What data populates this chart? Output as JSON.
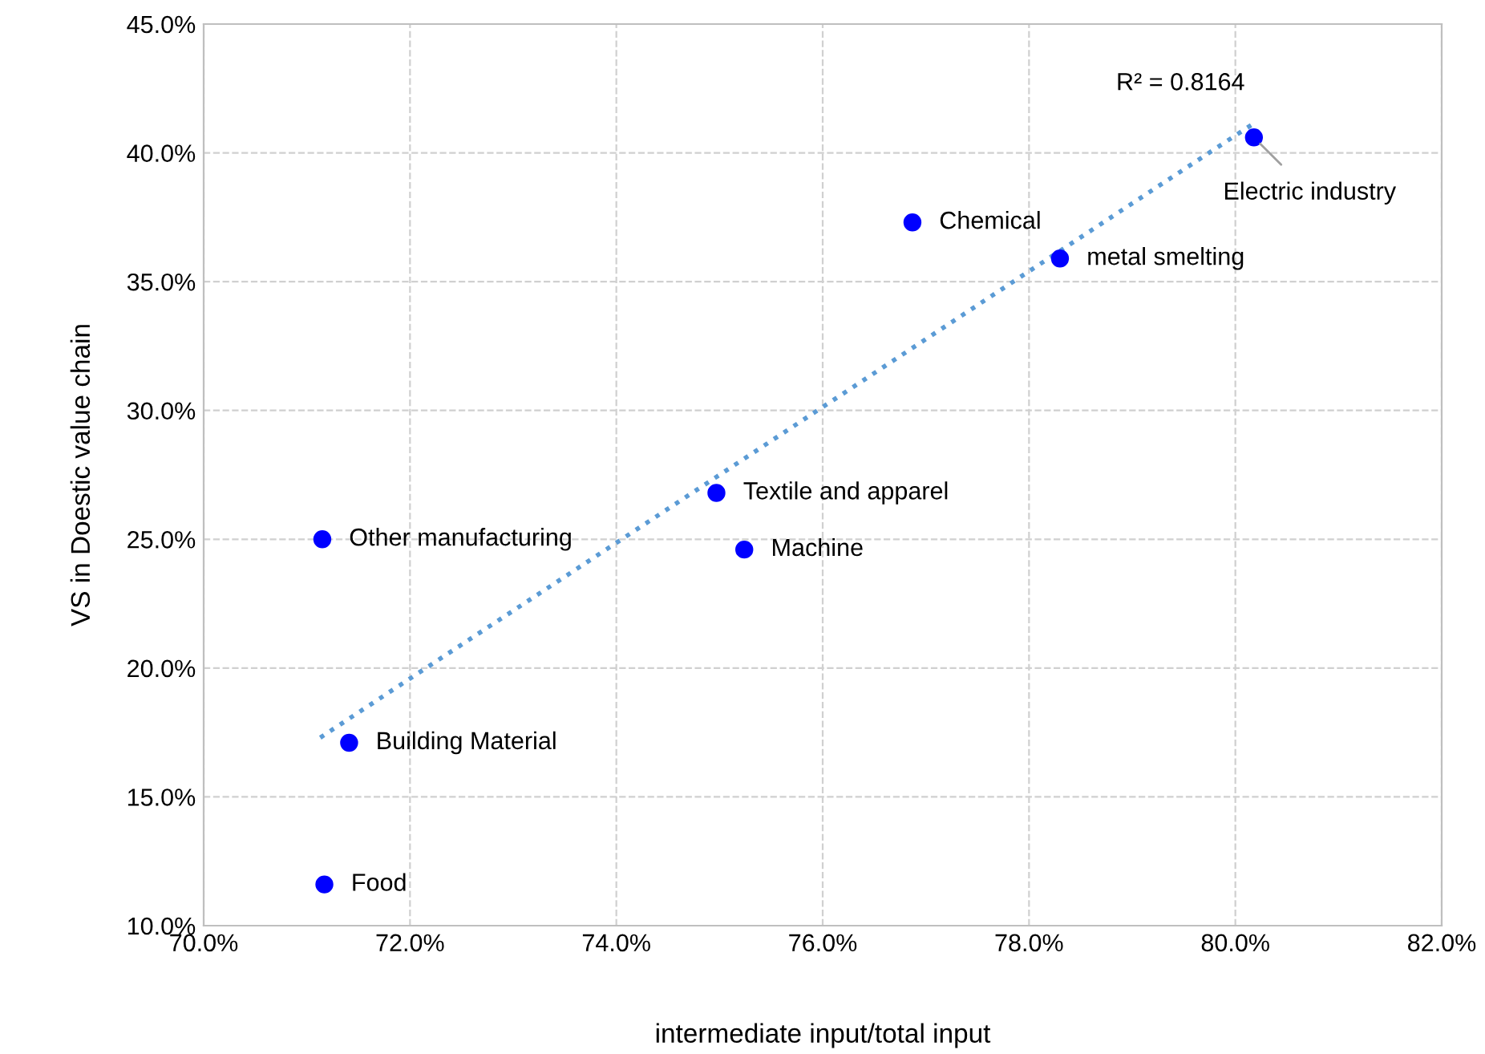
{
  "chart_data": {
    "type": "scatter",
    "xlabel": "intermediate input/total input",
    "ylabel": "VS in Doestic value chain",
    "xlim": [
      70,
      82
    ],
    "ylim": [
      10,
      45
    ],
    "xticks": [
      {
        "value": 70,
        "label": "70.0%"
      },
      {
        "value": 72,
        "label": "72.0%"
      },
      {
        "value": 74,
        "label": "74.0%"
      },
      {
        "value": 76,
        "label": "76.0%"
      },
      {
        "value": 78,
        "label": "78.0%"
      },
      {
        "value": 80,
        "label": "80.0%"
      },
      {
        "value": 82,
        "label": "82.0%"
      }
    ],
    "yticks": [
      {
        "value": 10,
        "label": "10.0%"
      },
      {
        "value": 15,
        "label": "15.0%"
      },
      {
        "value": 20,
        "label": "20.0%"
      },
      {
        "value": 25,
        "label": "25.0%"
      },
      {
        "value": 30,
        "label": "30.0%"
      },
      {
        "value": 35,
        "label": "35.0%"
      },
      {
        "value": 40,
        "label": "40.0%"
      },
      {
        "value": 45,
        "label": "45.0%"
      }
    ],
    "grid": true,
    "series": [
      {
        "color": "#0000ff",
        "marker": "circle",
        "x": [
          80.18,
          76.87,
          78.3,
          74.97,
          75.24,
          71.15,
          71.41,
          71.17
        ],
        "values": [
          40.6,
          37.3,
          35.9,
          26.8,
          24.6,
          25.0,
          17.1,
          11.6
        ]
      },
      {
        "type": "line",
        "color": "#5b9bd5",
        "line_style": "dotted",
        "marker": "none",
        "x": [
          71.13,
          80.2
        ],
        "values": [
          17.3,
          41.2
        ]
      }
    ],
    "annotations": [
      {
        "text": "Electric industry",
        "x": 80.18,
        "y": 40.6
      },
      {
        "text": "Chemical",
        "x": 76.87,
        "y": 37.3
      },
      {
        "text": "metal smelting",
        "x": 78.3,
        "y": 35.9
      },
      {
        "text": "Textile and apparel",
        "x": 74.97,
        "y": 26.8
      },
      {
        "text": "Machine",
        "x": 75.24,
        "y": 24.6
      },
      {
        "text": "Other manufacturing",
        "x": 71.15,
        "y": 25.0
      },
      {
        "text": "Building Material",
        "x": 71.41,
        "y": 17.1
      },
      {
        "text": "Food",
        "x": 71.17,
        "y": 11.6
      },
      {
        "text": "R² = 0.8164",
        "x": 80.2,
        "y": 41.2
      }
    ]
  }
}
